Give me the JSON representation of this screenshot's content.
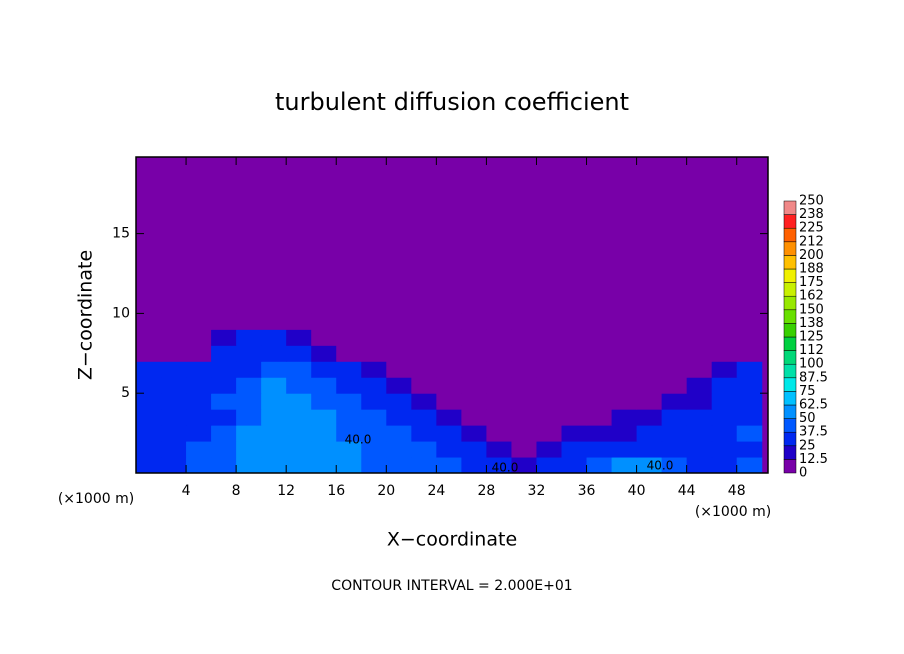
{
  "chart_data": {
    "type": "contour",
    "title": "turbulent diffusion coefficient",
    "x_label": "X−coordinate",
    "y_label": "Z−coordinate",
    "x_unit": "(×1000 m)",
    "footer": "CONTOUR INTERVAL = 2.000E+01",
    "contour_labels": [
      "40.0",
      "40.0",
      "40.0"
    ],
    "xlim": [
      0,
      50.5
    ],
    "ylim": [
      0,
      19.8
    ],
    "xticks": [
      4,
      8,
      12,
      16,
      20,
      24,
      28,
      32,
      36,
      40,
      44,
      48
    ],
    "yticks": [
      5,
      10,
      15
    ],
    "x": [
      1,
      3,
      5,
      7,
      9,
      11,
      13,
      15,
      17,
      19,
      21,
      23,
      25,
      27,
      29,
      31,
      33,
      35,
      37,
      39,
      41,
      43,
      45,
      47,
      49
    ],
    "y": [
      0.5,
      1.5,
      2.5,
      3.5,
      4.5,
      5.5,
      6.5,
      7.5,
      8.5,
      9.5
    ],
    "z": [
      [
        35,
        30,
        40,
        45,
        55,
        60,
        55,
        50,
        50,
        45,
        45,
        40,
        40,
        35,
        25,
        20,
        30,
        35,
        45,
        55,
        50,
        40,
        30,
        35,
        40
      ],
      [
        30,
        35,
        40,
        40,
        55,
        60,
        55,
        55,
        50,
        45,
        40,
        40,
        35,
        25,
        15,
        10,
        20,
        25,
        30,
        25,
        25,
        30,
        25,
        30,
        35
      ],
      [
        35,
        30,
        35,
        40,
        50,
        55,
        60,
        50,
        45,
        40,
        40,
        35,
        25,
        20,
        10,
        8,
        10,
        15,
        20,
        20,
        25,
        30,
        35,
        35,
        40
      ],
      [
        30,
        35,
        30,
        35,
        45,
        55,
        55,
        50,
        45,
        40,
        35,
        30,
        20,
        10,
        8,
        6,
        8,
        10,
        10,
        15,
        20,
        30,
        25,
        30,
        35
      ],
      [
        35,
        30,
        35,
        40,
        45,
        50,
        50,
        45,
        40,
        30,
        25,
        15,
        10,
        6,
        5,
        5,
        5,
        5,
        8,
        10,
        10,
        15,
        20,
        30,
        35
      ],
      [
        30,
        35,
        30,
        35,
        40,
        50,
        45,
        40,
        35,
        25,
        15,
        8,
        5,
        4,
        4,
        4,
        4,
        4,
        5,
        6,
        6,
        8,
        15,
        30,
        30
      ],
      [
        25,
        30,
        30,
        30,
        35,
        40,
        45,
        35,
        30,
        15,
        8,
        4,
        4,
        3,
        3,
        3,
        3,
        3,
        3,
        3,
        3,
        4,
        8,
        20,
        25
      ],
      [
        5,
        5,
        5,
        25,
        30,
        35,
        35,
        20,
        10,
        5,
        4,
        3,
        3,
        3,
        3,
        3,
        3,
        3,
        3,
        3,
        3,
        3,
        3,
        5,
        5
      ],
      [
        3,
        3,
        3,
        15,
        25,
        25,
        20,
        8,
        4,
        3,
        3,
        3,
        3,
        3,
        3,
        3,
        3,
        3,
        3,
        3,
        3,
        3,
        3,
        3,
        3
      ],
      [
        3,
        3,
        3,
        3,
        8,
        6,
        4,
        3,
        3,
        3,
        3,
        3,
        3,
        3,
        3,
        3,
        3,
        3,
        3,
        3,
        3,
        3,
        3,
        3,
        3
      ]
    ],
    "levels": [
      0,
      12.5,
      25,
      37.5,
      50,
      62.5,
      75,
      87.5,
      100,
      {
        "value": 112.5,
        "label": "112"
      },
      125,
      {
        "value": 137.5,
        "label": "138"
      },
      150,
      {
        "value": 162.5,
        "label": "162"
      },
      175,
      {
        "value": 187.5,
        "label": "188"
      },
      200,
      {
        "value": 212.5,
        "label": "212"
      },
      225,
      {
        "value": 237.5,
        "label": "238"
      },
      250
    ],
    "colors": [
      "#7800a8",
      "#2000c8",
      "#0028f0",
      "#0058ff",
      "#0090ff",
      "#00c0ff",
      "#00e8e8",
      "#00e0a8",
      "#00d878",
      "#00d040",
      "#38d000",
      "#68e000",
      "#98e800",
      "#c8f000",
      "#f0f000",
      "#ffc000",
      "#ff9000",
      "#ff6000",
      "#ff2020",
      "#f08888"
    ]
  }
}
